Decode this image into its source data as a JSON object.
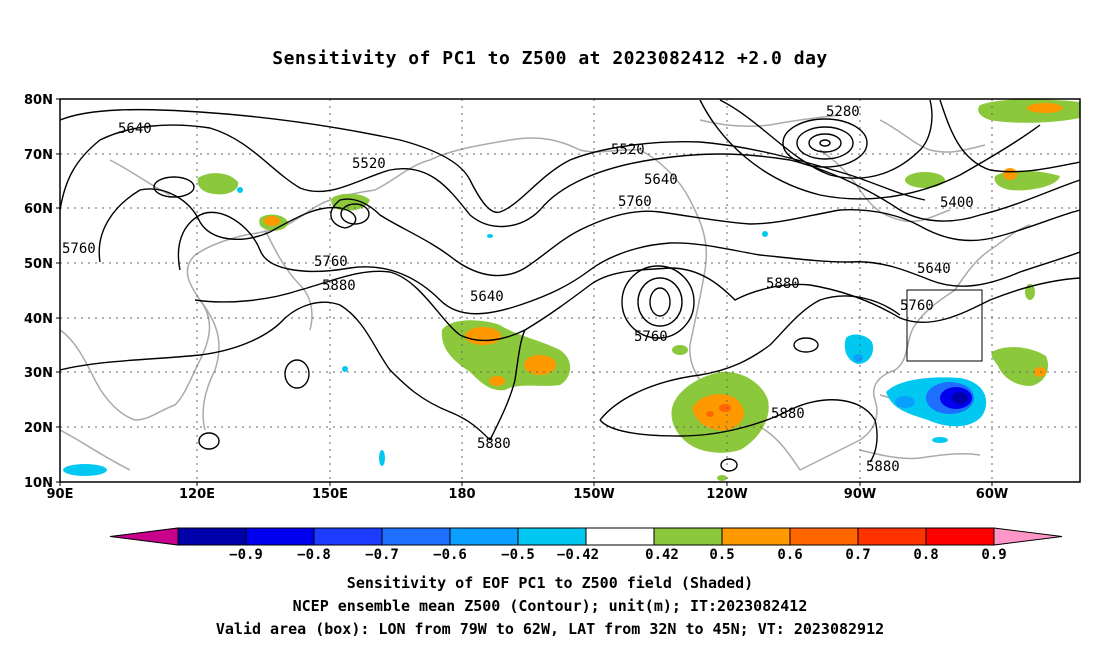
{
  "title": "Sensitivity of PC1 to Z500 at 2023082412 +2.0 day",
  "lat_labels": [
    "80N",
    "70N",
    "60N",
    "50N",
    "40N",
    "30N",
    "20N",
    "10N"
  ],
  "lon_labels": [
    "90E",
    "120E",
    "150E",
    "180",
    "150W",
    "120W",
    "90W",
    "60W"
  ],
  "contour_labels": [
    "5640",
    "5520",
    "5760",
    "5760",
    "5880",
    "5640",
    "5760",
    "5520",
    "5640",
    "5760",
    "5280",
    "5400",
    "5640",
    "5760",
    "5880",
    "5880",
    "5880",
    "5880"
  ],
  "colorbar": {
    "labels": [
      "-0.9",
      "-0.8",
      "-0.7",
      "-0.6",
      "-0.5",
      "-0.42",
      "0.42",
      "0.5",
      "0.6",
      "0.7",
      "0.8",
      "0.9"
    ],
    "colors": [
      "#c8008c",
      "#0000aa",
      "#0000ee",
      "#1e3cff",
      "#1e6eff",
      "#0aa0ff",
      "#00c8f0",
      "#ffffff",
      "#8cc83c",
      "#ff9900",
      "#ff6600",
      "#ff3300",
      "#ff0000",
      "#ff96c8"
    ]
  },
  "valid_box": {
    "lon_from": "79W",
    "lon_to": "62W",
    "lat_from": "32N",
    "lat_to": "45N"
  },
  "footer": {
    "line1": "Sensitivity of EOF PC1 to Z500 field (Shaded)",
    "line2": "NCEP ensemble mean Z500 (Contour); unit(m); IT:2023082412",
    "line3": "Valid area (box): LON from 79W to 62W, LAT from 32N to 45N; VT: 2023082912"
  }
}
